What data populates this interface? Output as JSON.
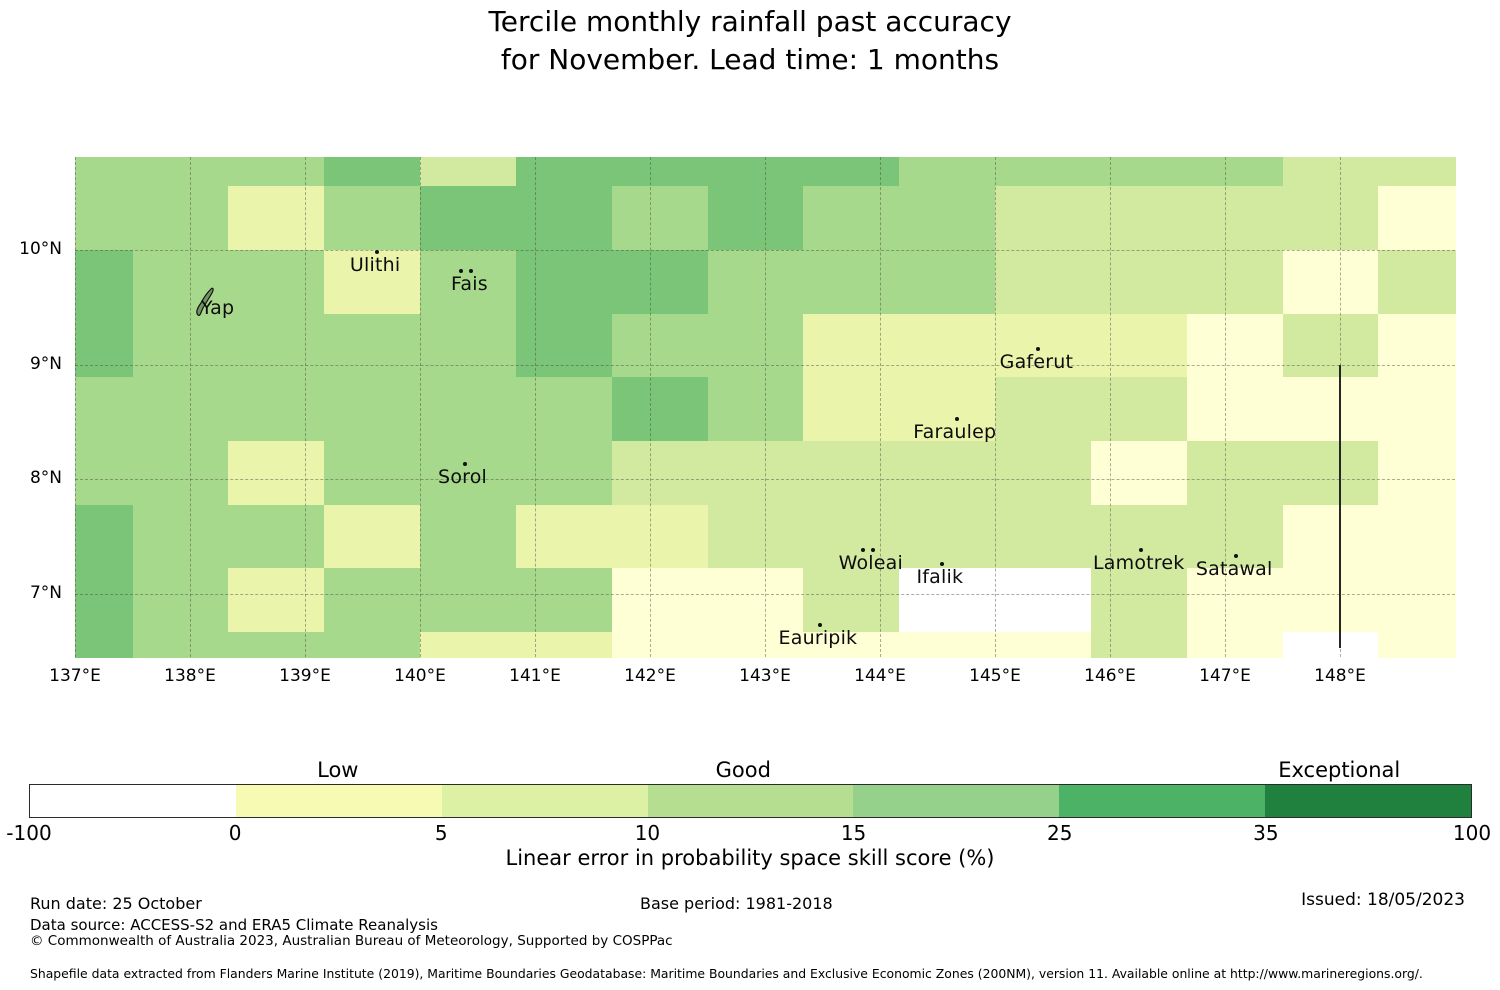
{
  "title": {
    "line1": "Tercile monthly rainfall past accuracy",
    "line2": "for November. Lead time: 1 months"
  },
  "chart_data": {
    "type": "heatmap",
    "title": "Tercile monthly rainfall past accuracy for November. Lead time: 1 months",
    "extent": {
      "lon_min": 137.0,
      "lon_max": 149.0,
      "lat_top": 10.81,
      "lat_bottom": 6.45
    },
    "lon_cell_edges": [
      137.0,
      137.5,
      138.333,
      139.167,
      140.0,
      140.833,
      141.667,
      142.5,
      143.333,
      144.167,
      145.0,
      145.833,
      146.667,
      147.5,
      148.333,
      149.0
    ],
    "lat_cell_edges": [
      10.81,
      10.556,
      10.0,
      9.444,
      8.889,
      8.333,
      7.778,
      7.222,
      6.667,
      6.45
    ],
    "grid_classes": [
      [
        "G2",
        "G2",
        "G2",
        "G3",
        "G1",
        "G3",
        "G3",
        "G3",
        "G3",
        "G2",
        "G2",
        "G2",
        "G2",
        "G1",
        "G1"
      ],
      [
        "G2",
        "G2",
        "Y2",
        "G2",
        "G3",
        "G3",
        "G2",
        "G3",
        "G2",
        "G2",
        "G1",
        "G1",
        "G1",
        "G1",
        "Y1"
      ],
      [
        "G3",
        "G2",
        "G2",
        "Y2",
        "G2",
        "G3",
        "G3",
        "G2",
        "G2",
        "G2",
        "G1",
        "G1",
        "G1",
        "Y1",
        "G1"
      ],
      [
        "G3",
        "G2",
        "G2",
        "G2",
        "G2",
        "G3",
        "G2",
        "G2",
        "Y2",
        "Y2",
        "Y2",
        "Y2",
        "Y1",
        "G1",
        "Y1"
      ],
      [
        "G2",
        "G2",
        "G2",
        "G2",
        "G2",
        "G2",
        "G3",
        "G2",
        "Y2",
        "Y2",
        "G1",
        "G1",
        "Y1",
        "Y1",
        "Y1"
      ],
      [
        "G2",
        "G2",
        "Y2",
        "G2",
        "G2",
        "G2",
        "G1",
        "G1",
        "G1",
        "G1",
        "G1",
        "Y1",
        "G1",
        "G1",
        "Y1"
      ],
      [
        "G3",
        "G2",
        "G2",
        "Y2",
        "G2",
        "Y2",
        "Y2",
        "G1",
        "G1",
        "G1",
        "G1",
        "G1",
        "G1",
        "Y1",
        "Y1"
      ],
      [
        "G3",
        "G2",
        "Y2",
        "G2",
        "G2",
        "G2",
        "Y1",
        "Y1",
        "G1",
        "W",
        "W",
        "G1",
        "Y1",
        "Y1",
        "Y1"
      ],
      [
        "G3",
        "G2",
        "G2",
        "G2",
        "Y2",
        "Y2",
        "Y1",
        "Y1",
        "Y1",
        "Y1",
        "Y1",
        "G1",
        "Y1",
        "W",
        "Y1"
      ]
    ],
    "bins": {
      "W": {
        "range": "-100 to 0",
        "color": "#ffffff"
      },
      "Y1": {
        "range": "0 to 5",
        "color": "#ffffd6"
      },
      "Y2": {
        "range": "5 to 10",
        "color": "#ebf4ab"
      },
      "G1": {
        "range": "10 to 15",
        "color": "#d2e9a0"
      },
      "G2": {
        "range": "15 to 25",
        "color": "#a7d98c"
      },
      "G3": {
        "range": "25 to 35",
        "color": "#7ac578"
      },
      "G4": {
        "range": "35 to 100",
        "color": "#4cb266"
      }
    },
    "gridline_lons": [
      137,
      138,
      139,
      140,
      141,
      142,
      143,
      144,
      145,
      146,
      147,
      148
    ],
    "gridline_lats": [
      10,
      9,
      8,
      7
    ],
    "x_ticks": [
      {
        "label": "137°E",
        "lon": 137
      },
      {
        "label": "138°E",
        "lon": 138
      },
      {
        "label": "139°E",
        "lon": 139
      },
      {
        "label": "140°E",
        "lon": 140
      },
      {
        "label": "141°E",
        "lon": 141
      },
      {
        "label": "142°E",
        "lon": 142
      },
      {
        "label": "143°E",
        "lon": 143
      },
      {
        "label": "144°E",
        "lon": 144
      },
      {
        "label": "145°E",
        "lon": 145
      },
      {
        "label": "146°E",
        "lon": 146
      },
      {
        "label": "147°E",
        "lon": 147
      },
      {
        "label": "148°E",
        "lon": 148
      }
    ],
    "y_ticks": [
      {
        "label": "10°N",
        "lat": 10
      },
      {
        "label": "9°N",
        "lat": 9
      },
      {
        "label": "8°N",
        "lat": 8
      },
      {
        "label": "7°N",
        "lat": 7
      }
    ],
    "islands": [
      {
        "name": "Yap",
        "lon": 138.24,
        "lat": 9.49,
        "marker": "outline"
      },
      {
        "name": "Ulithi",
        "lon": 139.61,
        "lat": 9.87,
        "marker": "dot"
      },
      {
        "name": "Fais",
        "lon": 140.43,
        "lat": 9.7,
        "marker": "two-dots"
      },
      {
        "name": "Sorol",
        "lon": 140.37,
        "lat": 8.02,
        "marker": "dot"
      },
      {
        "name": "Gaferut",
        "lon": 145.36,
        "lat": 9.02,
        "marker": "dot"
      },
      {
        "name": "Faraulep",
        "lon": 144.65,
        "lat": 8.41,
        "marker": "dot"
      },
      {
        "name": "Woleai",
        "lon": 143.92,
        "lat": 7.27,
        "marker": "two-dots"
      },
      {
        "name": "Ifalik",
        "lon": 144.52,
        "lat": 7.15,
        "marker": "dot"
      },
      {
        "name": "Eauripik",
        "lon": 143.46,
        "lat": 6.62,
        "marker": "dot"
      },
      {
        "name": "Lamotrek",
        "lon": 146.25,
        "lat": 7.27,
        "marker": "dot"
      },
      {
        "name": "Satawal",
        "lon": 147.08,
        "lat": 7.22,
        "marker": "dot"
      }
    ],
    "boundary_line": {
      "lon": 148,
      "lat_from": 9.0,
      "lat_to": 6.53
    },
    "colorbar": {
      "tick_labels": [
        "-100",
        "0",
        "5",
        "10",
        "15",
        "25",
        "35",
        "100"
      ],
      "segment_colors": [
        "#ffffff",
        "#f7fab2",
        "#dcf1a4",
        "#b5de90",
        "#96d18c",
        "#4cb266",
        "#20813f"
      ],
      "category_labels": [
        {
          "text": "Low",
          "pct": 21.4
        },
        {
          "text": "Good",
          "pct": 49.5
        },
        {
          "text": "Exceptional",
          "pct": 90.8
        }
      ],
      "xlabel": "Linear error in probability space skill score (%)"
    }
  },
  "footer": {
    "run_date": "Run date: 25 October",
    "base_period": "Base period: 1981-2018",
    "issued": "Issued: 18/05/2023",
    "data_source": "Data source: ACCESS-S2 and ERA5 Climate Reanalysis",
    "copyright": "© Commonwealth of Australia 2023, Australian Bureau of Meteorology, Supported by COSPPac",
    "shapefile_note": "Shapefile data extracted from Flanders Marine Institute (2019), Maritime Boundaries Geodatabase: Maritime Boundaries and Exclusive Economic Zones (200NM), version 11. Available online at http://www.marineregions.org/."
  }
}
